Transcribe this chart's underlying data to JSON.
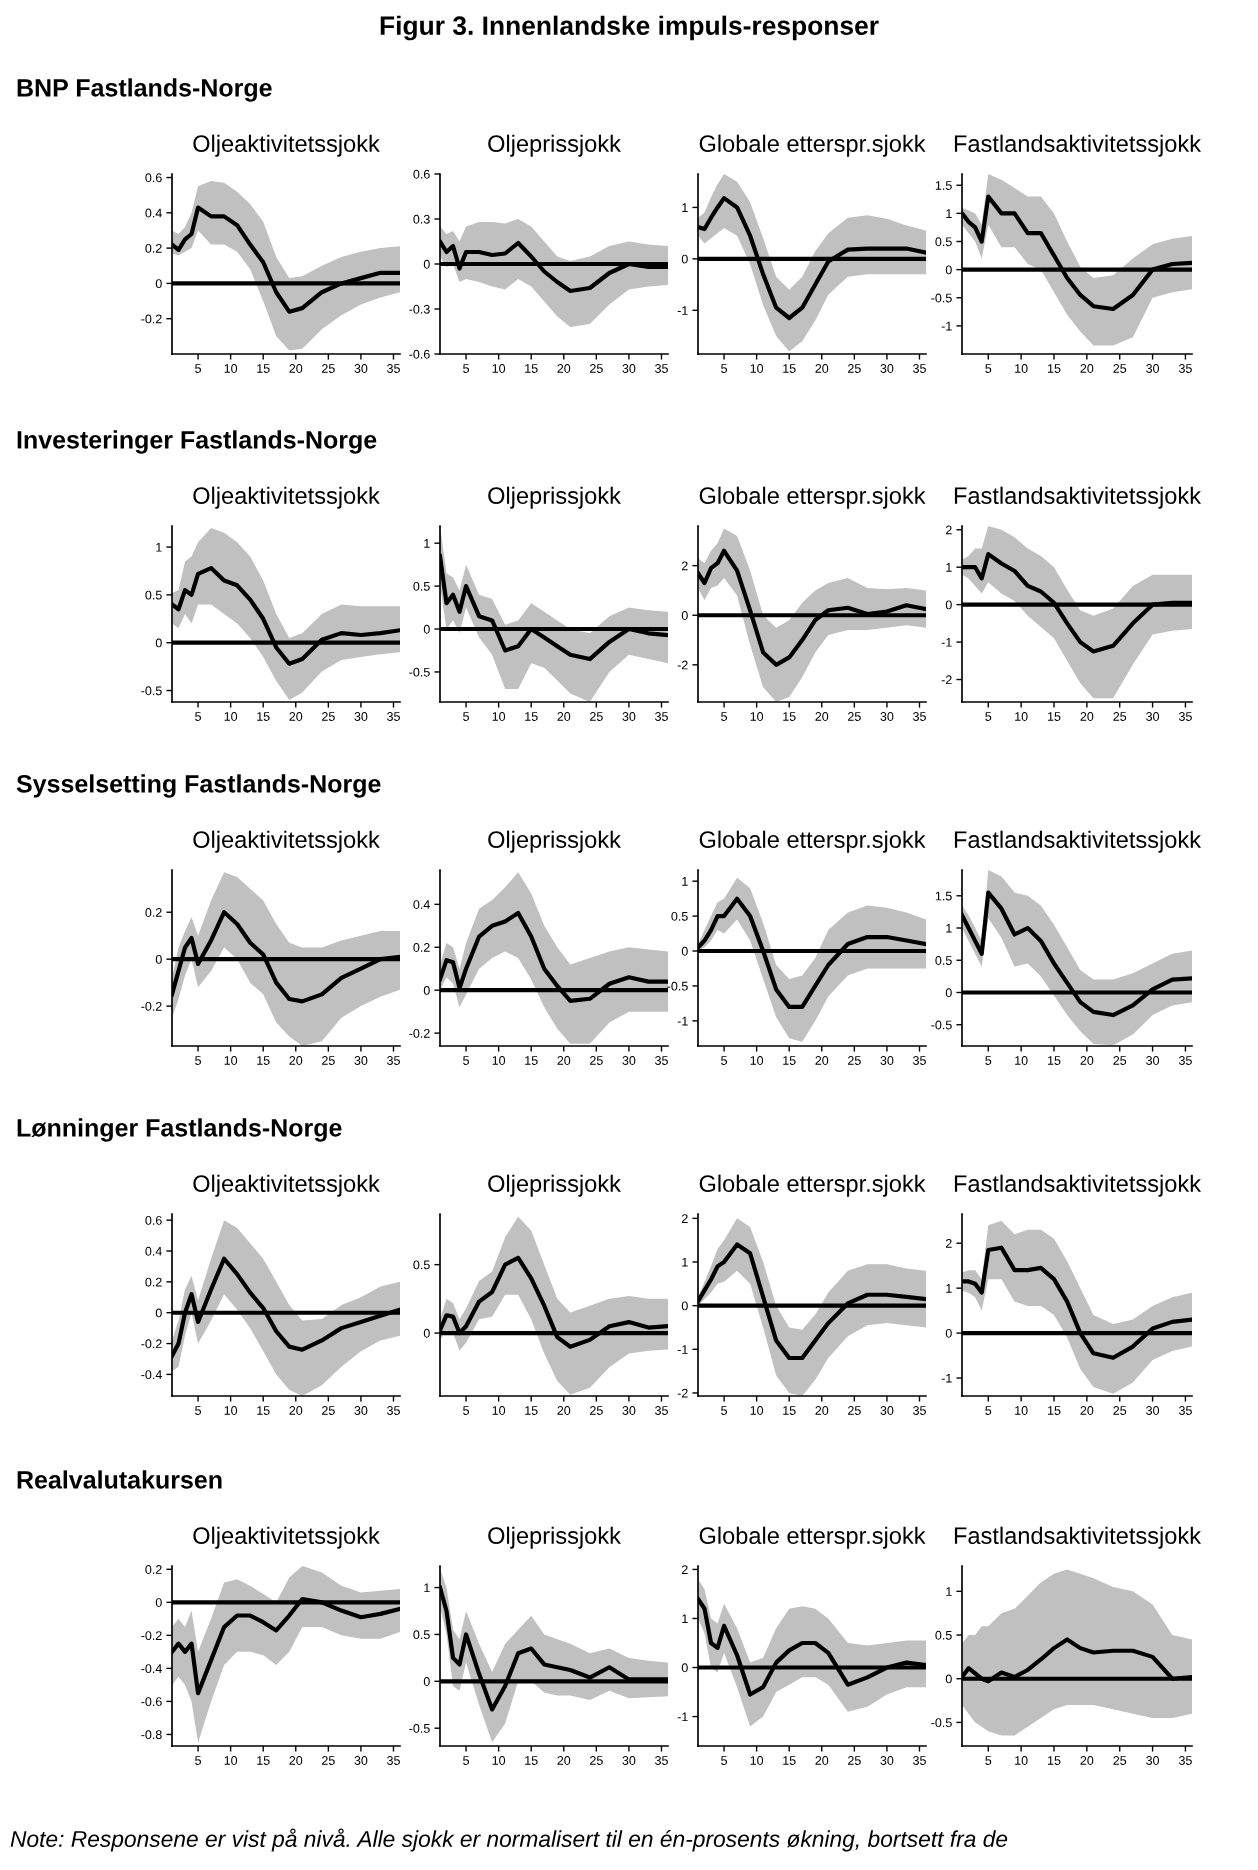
{
  "chart_data": [
    {
      "type": "other",
      "title": "Figur 3. Innenlandske impuls-responser",
      "annotations": [
        "Note: Responsene er vist på nivå. Alle sjokk er normalisert til en én-prosents økning, bortsett fra de"
      ]
    },
    {
      "type": "line",
      "subtitle": "BNP Fastlands-Norge",
      "title": "Oljeaktivitetssjokk",
      "xlim": [
        1,
        36
      ],
      "xticks": [
        5,
        10,
        15,
        20,
        25,
        30,
        35
      ],
      "ylim": [
        -0.4,
        0.62
      ],
      "yticks": [
        -0.2,
        0,
        0.2,
        0.4,
        0.6
      ],
      "ref_lines": [
        {
          "axis": "y",
          "value": 0,
          "color": "#000000"
        }
      ],
      "series": [
        {
          "color": "#000000",
          "x": [
            1,
            2,
            3,
            4,
            5,
            7,
            9,
            11,
            13,
            15,
            17,
            19,
            21,
            24,
            27,
            30,
            33,
            36
          ],
          "values": [
            0.22,
            0.19,
            0.25,
            0.28,
            0.43,
            0.38,
            0.38,
            0.33,
            0.22,
            0.12,
            -0.05,
            -0.16,
            -0.14,
            -0.05,
            0.0,
            0.03,
            0.06,
            0.06
          ],
          "upper": [
            0.3,
            0.28,
            0.32,
            0.4,
            0.55,
            0.58,
            0.57,
            0.52,
            0.45,
            0.35,
            0.15,
            0.03,
            0.04,
            0.1,
            0.15,
            0.18,
            0.2,
            0.21
          ],
          "lower": [
            0.17,
            0.16,
            0.18,
            0.2,
            0.3,
            0.22,
            0.22,
            0.18,
            0.08,
            -0.1,
            -0.3,
            -0.38,
            -0.37,
            -0.26,
            -0.18,
            -0.12,
            -0.08,
            -0.05
          ]
        }
      ]
    },
    {
      "type": "line",
      "title": "Oljeprissjokk",
      "xlim": [
        1,
        36
      ],
      "xticks": [
        5,
        10,
        15,
        20,
        25,
        30,
        35
      ],
      "ylim": [
        -0.6,
        0.6
      ],
      "yticks": [
        -0.6,
        -0.3,
        0,
        0.3,
        0.6
      ],
      "ref_lines": [
        {
          "axis": "y",
          "value": 0,
          "color": "#000000"
        }
      ],
      "series": [
        {
          "color": "#000000",
          "x": [
            1,
            2,
            3,
            4,
            5,
            7,
            9,
            11,
            13,
            15,
            17,
            19,
            21,
            24,
            27,
            30,
            33,
            36
          ],
          "values": [
            0.15,
            0.08,
            0.12,
            -0.03,
            0.08,
            0.08,
            0.06,
            0.07,
            0.14,
            0.05,
            -0.05,
            -0.12,
            -0.18,
            -0.16,
            -0.06,
            0.0,
            -0.02,
            -0.02
          ],
          "upper": [
            0.25,
            0.2,
            0.22,
            0.15,
            0.25,
            0.28,
            0.28,
            0.27,
            0.3,
            0.25,
            0.15,
            0.05,
            0.02,
            0.05,
            0.12,
            0.15,
            0.13,
            0.12
          ],
          "lower": [
            0.05,
            -0.02,
            0.0,
            -0.12,
            -0.1,
            -0.12,
            -0.15,
            -0.17,
            -0.1,
            -0.15,
            -0.25,
            -0.35,
            -0.42,
            -0.4,
            -0.27,
            -0.17,
            -0.15,
            -0.14
          ]
        }
      ]
    },
    {
      "type": "line",
      "title": "Globale etterspr.sjokk",
      "xlim": [
        1,
        36
      ],
      "xticks": [
        5,
        10,
        15,
        20,
        25,
        30,
        35
      ],
      "ylim": [
        -1.85,
        1.65
      ],
      "yticks": [
        -1,
        0,
        1
      ],
      "ref_lines": [
        {
          "axis": "y",
          "value": 0,
          "color": "#000000"
        }
      ],
      "series": [
        {
          "color": "#000000",
          "x": [
            1,
            2,
            3,
            4,
            5,
            7,
            9,
            11,
            13,
            15,
            17,
            19,
            21,
            24,
            27,
            30,
            33,
            36
          ],
          "values": [
            0.62,
            0.58,
            0.8,
            1.0,
            1.18,
            1.0,
            0.45,
            -0.3,
            -0.95,
            -1.15,
            -0.95,
            -0.5,
            -0.05,
            0.18,
            0.2,
            0.2,
            0.2,
            0.12
          ],
          "upper": [
            0.8,
            0.9,
            1.2,
            1.45,
            1.65,
            1.5,
            1.1,
            0.4,
            -0.35,
            -0.6,
            -0.35,
            0.15,
            0.5,
            0.8,
            0.85,
            0.78,
            0.65,
            0.55
          ],
          "lower": [
            0.45,
            0.3,
            0.4,
            0.5,
            0.6,
            0.45,
            -0.1,
            -0.9,
            -1.5,
            -1.8,
            -1.6,
            -1.2,
            -0.7,
            -0.35,
            -0.3,
            -0.3,
            -0.3,
            -0.3
          ]
        }
      ]
    },
    {
      "type": "line",
      "title": "Fastlandsaktivitetssjokk",
      "xlim": [
        1,
        36
      ],
      "xticks": [
        5,
        10,
        15,
        20,
        25,
        30,
        35
      ],
      "ylim": [
        -1.5,
        1.7
      ],
      "yticks": [
        -1,
        -0.5,
        0,
        0.5,
        1,
        1.5
      ],
      "ref_lines": [
        {
          "axis": "y",
          "value": 0,
          "color": "#000000"
        }
      ],
      "series": [
        {
          "color": "#000000",
          "x": [
            1,
            2,
            3,
            4,
            5,
            7,
            9,
            11,
            13,
            15,
            17,
            19,
            21,
            24,
            27,
            30,
            33,
            36
          ],
          "values": [
            1.0,
            0.85,
            0.75,
            0.5,
            1.3,
            1.0,
            1.0,
            0.65,
            0.65,
            0.25,
            -0.15,
            -0.45,
            -0.65,
            -0.7,
            -0.45,
            0.0,
            0.1,
            0.12
          ],
          "upper": [
            1.1,
            1.05,
            1.0,
            0.8,
            1.7,
            1.6,
            1.45,
            1.3,
            1.3,
            1.0,
            0.5,
            0.05,
            -0.15,
            -0.1,
            0.2,
            0.45,
            0.55,
            0.6
          ],
          "lower": [
            0.8,
            0.65,
            0.5,
            0.2,
            0.8,
            0.4,
            0.4,
            0.1,
            0.0,
            -0.4,
            -0.8,
            -1.1,
            -1.35,
            -1.35,
            -1.2,
            -0.5,
            -0.4,
            -0.35
          ]
        }
      ]
    },
    {
      "type": "line",
      "subtitle": "Investeringer Fastlands-Norge",
      "title": "Oljeaktivitetssjokk",
      "xlim": [
        1,
        36
      ],
      "xticks": [
        5,
        10,
        15,
        20,
        25,
        30,
        35
      ],
      "ylim": [
        -0.62,
        1.22
      ],
      "yticks": [
        -0.5,
        0,
        0.5,
        1
      ],
      "ref_lines": [
        {
          "axis": "y",
          "value": 0,
          "color": "#000000"
        }
      ],
      "series": [
        {
          "color": "#000000",
          "x": [
            1,
            2,
            3,
            4,
            5,
            7,
            9,
            11,
            13,
            15,
            17,
            19,
            21,
            24,
            27,
            30,
            33,
            36
          ],
          "values": [
            0.4,
            0.35,
            0.55,
            0.5,
            0.72,
            0.78,
            0.65,
            0.6,
            0.45,
            0.25,
            -0.05,
            -0.22,
            -0.17,
            0.03,
            0.1,
            0.08,
            0.1,
            0.13
          ],
          "upper": [
            0.52,
            0.55,
            0.85,
            0.9,
            1.05,
            1.2,
            1.15,
            1.05,
            0.9,
            0.65,
            0.3,
            0.05,
            0.1,
            0.3,
            0.4,
            0.38,
            0.38,
            0.38
          ],
          "lower": [
            0.2,
            0.15,
            0.3,
            0.2,
            0.4,
            0.4,
            0.3,
            0.2,
            0.05,
            -0.15,
            -0.4,
            -0.6,
            -0.52,
            -0.3,
            -0.18,
            -0.15,
            -0.12,
            -0.1
          ]
        }
      ]
    },
    {
      "type": "line",
      "title": "Oljeprissjokk",
      "xlim": [
        1,
        36
      ],
      "xticks": [
        5,
        10,
        15,
        20,
        25,
        30,
        35
      ],
      "ylim": [
        -0.85,
        1.2
      ],
      "yticks": [
        -0.5,
        0,
        0.5,
        1
      ],
      "ref_lines": [
        {
          "axis": "y",
          "value": 0,
          "color": "#000000"
        }
      ],
      "series": [
        {
          "color": "#000000",
          "x": [
            1,
            2,
            3,
            4,
            5,
            7,
            9,
            11,
            13,
            15,
            17,
            19,
            21,
            24,
            27,
            30,
            33,
            36
          ],
          "values": [
            0.85,
            0.3,
            0.4,
            0.2,
            0.5,
            0.15,
            0.1,
            -0.25,
            -0.2,
            0.0,
            -0.1,
            -0.2,
            -0.3,
            -0.35,
            -0.15,
            0.0,
            -0.05,
            -0.07
          ],
          "upper": [
            1.2,
            0.65,
            0.6,
            0.45,
            0.75,
            0.4,
            0.35,
            0.05,
            0.1,
            0.3,
            0.2,
            0.1,
            0.0,
            -0.05,
            0.15,
            0.25,
            0.22,
            0.2
          ],
          "lower": [
            0.5,
            0.0,
            0.1,
            -0.05,
            0.25,
            -0.1,
            -0.3,
            -0.7,
            -0.7,
            -0.4,
            -0.45,
            -0.6,
            -0.75,
            -0.85,
            -0.5,
            -0.3,
            -0.35,
            -0.4
          ]
        }
      ]
    },
    {
      "type": "line",
      "title": "Globale etterspr.sjokk",
      "xlim": [
        1,
        36
      ],
      "xticks": [
        5,
        10,
        15,
        20,
        25,
        30,
        35
      ],
      "ylim": [
        -3.5,
        3.6
      ],
      "yticks": [
        -2,
        0,
        2
      ],
      "ref_lines": [
        {
          "axis": "y",
          "value": 0,
          "color": "#000000"
        }
      ],
      "series": [
        {
          "color": "#000000",
          "x": [
            1,
            2,
            3,
            4,
            5,
            7,
            9,
            11,
            13,
            15,
            17,
            19,
            21,
            24,
            27,
            30,
            33,
            36
          ],
          "values": [
            1.7,
            1.3,
            1.9,
            2.1,
            2.6,
            1.8,
            0.2,
            -1.5,
            -2.0,
            -1.7,
            -1.0,
            -0.2,
            0.2,
            0.3,
            0.05,
            0.15,
            0.4,
            0.25
          ],
          "upper": [
            2.3,
            2.1,
            2.6,
            2.9,
            3.5,
            3.2,
            1.8,
            0.0,
            -0.5,
            -0.2,
            0.5,
            1.0,
            1.3,
            1.5,
            1.1,
            1.05,
            1.1,
            1.0
          ],
          "lower": [
            1.1,
            0.6,
            1.1,
            1.2,
            1.5,
            0.8,
            -1.2,
            -2.9,
            -3.5,
            -3.3,
            -2.5,
            -1.5,
            -0.8,
            -0.6,
            -0.6,
            -0.5,
            -0.4,
            -0.5
          ]
        }
      ]
    },
    {
      "type": "line",
      "title": "Fastlandsaktivitetssjokk",
      "xlim": [
        1,
        36
      ],
      "xticks": [
        5,
        10,
        15,
        20,
        25,
        30,
        35
      ],
      "ylim": [
        -2.6,
        2.1
      ],
      "yticks": [
        -2,
        -1,
        0,
        1,
        2
      ],
      "ref_lines": [
        {
          "axis": "y",
          "value": 0,
          "color": "#000000"
        }
      ],
      "series": [
        {
          "color": "#000000",
          "x": [
            1,
            2,
            3,
            4,
            5,
            7,
            9,
            11,
            13,
            15,
            17,
            19,
            21,
            24,
            27,
            30,
            33,
            36
          ],
          "values": [
            1.0,
            1.0,
            1.0,
            0.7,
            1.35,
            1.1,
            0.9,
            0.5,
            0.35,
            0.05,
            -0.5,
            -1.0,
            -1.25,
            -1.1,
            -0.5,
            0.0,
            0.05,
            0.05
          ],
          "upper": [
            1.2,
            1.3,
            1.5,
            1.5,
            2.1,
            2.0,
            1.8,
            1.5,
            1.3,
            1.0,
            0.4,
            -0.15,
            -0.3,
            -0.1,
            0.5,
            0.8,
            0.8,
            0.8
          ],
          "lower": [
            0.8,
            0.7,
            0.5,
            0.3,
            0.6,
            0.3,
            0.1,
            -0.3,
            -0.6,
            -0.9,
            -1.5,
            -2.1,
            -2.5,
            -2.5,
            -1.6,
            -0.8,
            -0.7,
            -0.65
          ]
        }
      ]
    },
    {
      "type": "line",
      "subtitle": "Sysselsetting Fastlands-Norge",
      "title": "Oljeaktivitetssjokk",
      "xlim": [
        1,
        36
      ],
      "xticks": [
        5,
        10,
        15,
        20,
        25,
        30,
        35
      ],
      "ylim": [
        -0.37,
        0.38
      ],
      "yticks": [
        -0.2,
        0,
        0.2
      ],
      "ref_lines": [
        {
          "axis": "y",
          "value": 0,
          "color": "#000000"
        }
      ],
      "series": [
        {
          "color": "#000000",
          "x": [
            1,
            2,
            3,
            4,
            5,
            7,
            9,
            11,
            13,
            15,
            17,
            19,
            21,
            24,
            27,
            30,
            33,
            36
          ],
          "values": [
            -0.15,
            -0.05,
            0.05,
            0.09,
            -0.02,
            0.08,
            0.2,
            0.15,
            0.07,
            0.02,
            -0.1,
            -0.17,
            -0.18,
            -0.15,
            -0.08,
            -0.04,
            0.0,
            0.01
          ],
          "upper": [
            -0.08,
            0.05,
            0.12,
            0.18,
            0.1,
            0.25,
            0.37,
            0.35,
            0.3,
            0.25,
            0.15,
            0.07,
            0.05,
            0.05,
            0.08,
            0.1,
            0.12,
            0.12
          ],
          "lower": [
            -0.25,
            -0.17,
            -0.07,
            0.0,
            -0.12,
            -0.05,
            0.05,
            0.0,
            -0.1,
            -0.15,
            -0.27,
            -0.33,
            -0.37,
            -0.35,
            -0.25,
            -0.2,
            -0.16,
            -0.13
          ]
        }
      ]
    },
    {
      "type": "line",
      "title": "Oljeprissjokk",
      "xlim": [
        1,
        36
      ],
      "xticks": [
        5,
        10,
        15,
        20,
        25,
        30,
        35
      ],
      "ylim": [
        -0.26,
        0.56
      ],
      "yticks": [
        -0.2,
        0,
        0.2,
        0.4
      ],
      "ref_lines": [
        {
          "axis": "y",
          "value": 0,
          "color": "#000000"
        }
      ],
      "series": [
        {
          "color": "#000000",
          "x": [
            1,
            2,
            3,
            4,
            5,
            7,
            9,
            11,
            13,
            15,
            17,
            19,
            21,
            24,
            27,
            30,
            33,
            36
          ],
          "values": [
            0.05,
            0.14,
            0.13,
            0.01,
            0.1,
            0.25,
            0.3,
            0.32,
            0.36,
            0.25,
            0.1,
            0.02,
            -0.05,
            -0.04,
            0.03,
            0.06,
            0.04,
            0.04
          ],
          "upper": [
            0.12,
            0.22,
            0.2,
            0.1,
            0.22,
            0.38,
            0.42,
            0.48,
            0.55,
            0.45,
            0.3,
            0.2,
            0.12,
            0.15,
            0.18,
            0.2,
            0.19,
            0.18
          ],
          "lower": [
            0.0,
            0.06,
            0.03,
            -0.08,
            -0.02,
            0.1,
            0.15,
            0.18,
            0.15,
            0.05,
            -0.08,
            -0.18,
            -0.25,
            -0.25,
            -0.15,
            -0.1,
            -0.1,
            -0.1
          ]
        }
      ]
    },
    {
      "type": "line",
      "title": "Globale etterspr.sjokk",
      "xlim": [
        1,
        36
      ],
      "xticks": [
        5,
        10,
        15,
        20,
        25,
        30,
        35
      ],
      "ylim": [
        -1.36,
        1.16
      ],
      "yticks": [
        -1,
        -0.5,
        0,
        0.5,
        1
      ],
      "ref_lines": [
        {
          "axis": "y",
          "value": 0,
          "color": "#000000"
        }
      ],
      "series": [
        {
          "color": "#000000",
          "x": [
            1,
            2,
            3,
            4,
            5,
            7,
            9,
            11,
            13,
            15,
            17,
            19,
            21,
            24,
            27,
            30,
            33,
            36
          ],
          "values": [
            0.05,
            0.15,
            0.3,
            0.5,
            0.5,
            0.75,
            0.5,
            0.0,
            -0.55,
            -0.8,
            -0.8,
            -0.5,
            -0.2,
            0.1,
            0.2,
            0.2,
            0.15,
            0.1
          ],
          "upper": [
            0.1,
            0.3,
            0.5,
            0.7,
            0.75,
            1.05,
            0.9,
            0.4,
            -0.2,
            -0.4,
            -0.35,
            -0.1,
            0.3,
            0.55,
            0.65,
            0.62,
            0.55,
            0.45
          ],
          "lower": [
            0.0,
            0.05,
            0.15,
            0.3,
            0.25,
            0.45,
            0.15,
            -0.4,
            -0.95,
            -1.25,
            -1.3,
            -1.0,
            -0.65,
            -0.35,
            -0.25,
            -0.25,
            -0.25,
            -0.25
          ]
        }
      ]
    },
    {
      "type": "line",
      "title": "Fastlandsaktivitetssjokk",
      "xlim": [
        1,
        36
      ],
      "xticks": [
        5,
        10,
        15,
        20,
        25,
        30,
        35
      ],
      "ylim": [
        -0.83,
        1.9
      ],
      "yticks": [
        -0.5,
        0,
        0.5,
        1,
        1.5
      ],
      "ref_lines": [
        {
          "axis": "y",
          "value": 0,
          "color": "#000000"
        }
      ],
      "series": [
        {
          "color": "#000000",
          "x": [
            1,
            2,
            3,
            4,
            5,
            7,
            9,
            11,
            13,
            15,
            17,
            19,
            21,
            24,
            27,
            30,
            33,
            36
          ],
          "values": [
            1.2,
            1.0,
            0.8,
            0.6,
            1.55,
            1.3,
            0.9,
            1.0,
            0.8,
            0.45,
            0.15,
            -0.15,
            -0.3,
            -0.35,
            -0.2,
            0.05,
            0.2,
            0.22
          ],
          "upper": [
            1.35,
            1.2,
            1.0,
            0.8,
            1.9,
            1.8,
            1.55,
            1.5,
            1.35,
            1.05,
            0.7,
            0.35,
            0.2,
            0.2,
            0.3,
            0.45,
            0.6,
            0.65
          ],
          "lower": [
            1.0,
            0.8,
            0.6,
            0.4,
            1.15,
            0.85,
            0.4,
            0.45,
            0.25,
            -0.05,
            -0.35,
            -0.6,
            -0.8,
            -0.82,
            -0.65,
            -0.35,
            -0.2,
            -0.15
          ]
        }
      ]
    },
    {
      "type": "line",
      "subtitle": "Lønninger Fastlands-Norge",
      "title": "Oljeaktivitetssjokk",
      "xlim": [
        1,
        36
      ],
      "xticks": [
        5,
        10,
        15,
        20,
        25,
        30,
        35
      ],
      "ylim": [
        -0.54,
        0.64
      ],
      "yticks": [
        -0.4,
        -0.2,
        0,
        0.2,
        0.4,
        0.6
      ],
      "ref_lines": [
        {
          "axis": "y",
          "value": 0,
          "color": "#000000"
        }
      ],
      "series": [
        {
          "color": "#000000",
          "x": [
            1,
            2,
            3,
            4,
            5,
            7,
            9,
            11,
            13,
            15,
            17,
            19,
            21,
            24,
            27,
            30,
            33,
            36
          ],
          "values": [
            -0.28,
            -0.2,
            0.0,
            0.12,
            -0.06,
            0.15,
            0.35,
            0.25,
            0.13,
            0.03,
            -0.12,
            -0.22,
            -0.24,
            -0.18,
            -0.1,
            -0.06,
            -0.02,
            0.02
          ],
          "upper": [
            -0.18,
            -0.05,
            0.15,
            0.24,
            0.08,
            0.35,
            0.6,
            0.55,
            0.45,
            0.35,
            0.2,
            0.05,
            -0.05,
            -0.04,
            0.05,
            0.1,
            0.17,
            0.2
          ],
          "lower": [
            -0.38,
            -0.35,
            -0.15,
            0.0,
            -0.2,
            -0.05,
            0.12,
            0.02,
            -0.1,
            -0.25,
            -0.4,
            -0.5,
            -0.54,
            -0.47,
            -0.35,
            -0.25,
            -0.18,
            -0.15
          ]
        }
      ]
    },
    {
      "type": "line",
      "title": "Oljeprissjokk",
      "xlim": [
        1,
        36
      ],
      "xticks": [
        5,
        10,
        15,
        20,
        25,
        30,
        35
      ],
      "ylim": [
        -0.46,
        0.87
      ],
      "yticks": [
        0,
        0.5
      ],
      "ref_lines": [
        {
          "axis": "y",
          "value": 0,
          "color": "#000000"
        }
      ],
      "series": [
        {
          "color": "#000000",
          "x": [
            1,
            2,
            3,
            4,
            5,
            7,
            9,
            11,
            13,
            15,
            17,
            19,
            21,
            24,
            27,
            30,
            33,
            36
          ],
          "values": [
            0.02,
            0.13,
            0.12,
            0.0,
            0.05,
            0.23,
            0.3,
            0.5,
            0.55,
            0.4,
            0.2,
            -0.03,
            -0.1,
            -0.05,
            0.05,
            0.08,
            0.04,
            0.05
          ],
          "upper": [
            0.1,
            0.25,
            0.22,
            0.1,
            0.18,
            0.38,
            0.45,
            0.7,
            0.85,
            0.75,
            0.5,
            0.25,
            0.15,
            0.2,
            0.25,
            0.27,
            0.25,
            0.25
          ],
          "lower": [
            -0.05,
            0.02,
            0.0,
            -0.13,
            -0.07,
            0.1,
            0.12,
            0.28,
            0.28,
            0.1,
            -0.15,
            -0.35,
            -0.45,
            -0.4,
            -0.25,
            -0.15,
            -0.13,
            -0.12
          ]
        }
      ]
    },
    {
      "type": "line",
      "title": "Globale etterspr.sjokk",
      "xlim": [
        1,
        36
      ],
      "xticks": [
        5,
        10,
        15,
        20,
        25,
        30,
        35
      ],
      "ylim": [
        -2.07,
        2.1
      ],
      "yticks": [
        -2,
        -1,
        0,
        1,
        2
      ],
      "ref_lines": [
        {
          "axis": "y",
          "value": 0,
          "color": "#000000"
        }
      ],
      "series": [
        {
          "color": "#000000",
          "x": [
            1,
            2,
            3,
            4,
            5,
            7,
            9,
            11,
            13,
            15,
            17,
            19,
            21,
            24,
            27,
            30,
            33,
            36
          ],
          "values": [
            0.1,
            0.35,
            0.6,
            0.9,
            1.0,
            1.4,
            1.2,
            0.2,
            -0.8,
            -1.2,
            -1.2,
            -0.8,
            -0.4,
            0.05,
            0.25,
            0.25,
            0.2,
            0.15
          ],
          "upper": [
            0.2,
            0.55,
            0.9,
            1.3,
            1.5,
            2.0,
            1.8,
            1.0,
            0.0,
            -0.5,
            -0.55,
            -0.2,
            0.3,
            0.8,
            0.95,
            0.95,
            0.85,
            0.8
          ],
          "lower": [
            0.0,
            0.15,
            0.3,
            0.5,
            0.55,
            0.8,
            0.5,
            -0.5,
            -1.6,
            -2.0,
            -2.07,
            -1.7,
            -1.2,
            -0.7,
            -0.45,
            -0.4,
            -0.45,
            -0.5
          ]
        }
      ]
    },
    {
      "type": "line",
      "title": "Fastlandsaktivitetssjokk",
      "xlim": [
        1,
        36
      ],
      "xticks": [
        5,
        10,
        15,
        20,
        25,
        30,
        35
      ],
      "ylim": [
        -1.4,
        2.65
      ],
      "yticks": [
        -1,
        0,
        1,
        2
      ],
      "ref_lines": [
        {
          "axis": "y",
          "value": 0,
          "color": "#000000"
        }
      ],
      "series": [
        {
          "color": "#000000",
          "x": [
            1,
            2,
            3,
            4,
            5,
            7,
            9,
            11,
            13,
            15,
            17,
            19,
            21,
            24,
            27,
            30,
            33,
            36
          ],
          "values": [
            1.15,
            1.15,
            1.1,
            0.9,
            1.85,
            1.9,
            1.4,
            1.4,
            1.45,
            1.2,
            0.7,
            0.0,
            -0.45,
            -0.55,
            -0.3,
            0.1,
            0.25,
            0.3
          ],
          "upper": [
            1.35,
            1.4,
            1.4,
            1.2,
            2.4,
            2.5,
            2.2,
            2.3,
            2.3,
            2.1,
            1.6,
            1.0,
            0.4,
            0.2,
            0.3,
            0.6,
            0.8,
            0.9
          ],
          "lower": [
            0.95,
            0.9,
            0.8,
            0.5,
            1.2,
            1.2,
            0.7,
            0.6,
            0.6,
            0.4,
            -0.1,
            -0.8,
            -1.2,
            -1.35,
            -1.1,
            -0.6,
            -0.4,
            -0.3
          ]
        }
      ]
    },
    {
      "type": "line",
      "subtitle": "Realvalutakursen",
      "title": "Oljeaktivitetssjokk",
      "xlim": [
        1,
        36
      ],
      "xticks": [
        5,
        10,
        15,
        20,
        25,
        30,
        35
      ],
      "ylim": [
        -0.87,
        0.22
      ],
      "yticks": [
        -0.8,
        -0.6,
        -0.4,
        -0.2,
        0,
        0.2
      ],
      "ref_lines": [
        {
          "axis": "y",
          "value": 0,
          "color": "#000000"
        }
      ],
      "series": [
        {
          "color": "#000000",
          "x": [
            1,
            2,
            3,
            4,
            5,
            7,
            9,
            11,
            13,
            15,
            17,
            19,
            21,
            24,
            27,
            30,
            33,
            36
          ],
          "values": [
            -0.3,
            -0.25,
            -0.3,
            -0.25,
            -0.55,
            -0.35,
            -0.15,
            -0.08,
            -0.08,
            -0.12,
            -0.17,
            -0.08,
            0.02,
            0.0,
            -0.05,
            -0.09,
            -0.07,
            -0.04
          ],
          "upper": [
            -0.15,
            -0.1,
            -0.15,
            -0.05,
            -0.3,
            -0.1,
            0.12,
            0.14,
            0.1,
            0.05,
            0.0,
            0.15,
            0.22,
            0.18,
            0.1,
            0.06,
            0.07,
            0.08
          ],
          "lower": [
            -0.5,
            -0.45,
            -0.5,
            -0.6,
            -0.85,
            -0.6,
            -0.38,
            -0.3,
            -0.3,
            -0.32,
            -0.38,
            -0.3,
            -0.15,
            -0.15,
            -0.2,
            -0.22,
            -0.22,
            -0.18
          ]
        }
      ]
    },
    {
      "type": "line",
      "title": "Oljeprissjokk",
      "xlim": [
        1,
        36
      ],
      "xticks": [
        5,
        10,
        15,
        20,
        25,
        30,
        35
      ],
      "ylim": [
        -0.69,
        1.23
      ],
      "yticks": [
        -0.5,
        0,
        0.5,
        1
      ],
      "ref_lines": [
        {
          "axis": "y",
          "value": 0,
          "color": "#000000"
        }
      ],
      "series": [
        {
          "color": "#000000",
          "x": [
            1,
            2,
            3,
            4,
            5,
            7,
            9,
            11,
            13,
            15,
            17,
            19,
            21,
            24,
            27,
            30,
            33,
            36
          ],
          "values": [
            1.0,
            0.75,
            0.25,
            0.18,
            0.5,
            0.08,
            -0.3,
            -0.05,
            0.3,
            0.35,
            0.18,
            0.15,
            0.12,
            0.04,
            0.15,
            0.02,
            0.02,
            0.02
          ],
          "upper": [
            1.2,
            1.0,
            0.55,
            0.45,
            0.75,
            0.4,
            0.1,
            0.4,
            0.55,
            0.7,
            0.5,
            0.45,
            0.4,
            0.3,
            0.35,
            0.25,
            0.22,
            0.2
          ],
          "lower": [
            0.8,
            0.5,
            -0.05,
            -0.1,
            0.2,
            -0.25,
            -0.65,
            -0.45,
            0.0,
            0.0,
            -0.12,
            -0.15,
            -0.15,
            -0.2,
            -0.1,
            -0.18,
            -0.17,
            -0.16
          ]
        }
      ]
    },
    {
      "type": "line",
      "title": "Globale etterspr.sjokk",
      "xlim": [
        1,
        36
      ],
      "xticks": [
        5,
        10,
        15,
        20,
        25,
        30,
        35
      ],
      "ylim": [
        -1.6,
        2.07
      ],
      "yticks": [
        -1,
        0,
        1,
        2
      ],
      "ref_lines": [
        {
          "axis": "y",
          "value": 0,
          "color": "#000000"
        }
      ],
      "series": [
        {
          "color": "#000000",
          "x": [
            1,
            2,
            3,
            4,
            5,
            7,
            9,
            11,
            13,
            15,
            17,
            19,
            21,
            24,
            27,
            30,
            33,
            36
          ],
          "values": [
            1.4,
            1.2,
            0.5,
            0.4,
            0.85,
            0.25,
            -0.55,
            -0.4,
            0.1,
            0.35,
            0.5,
            0.5,
            0.3,
            -0.35,
            -0.2,
            0.0,
            0.1,
            0.05
          ],
          "upper": [
            1.8,
            1.6,
            1.0,
            0.9,
            1.3,
            0.8,
            0.1,
            0.2,
            0.8,
            1.2,
            1.25,
            1.2,
            1.0,
            0.5,
            0.45,
            0.5,
            0.55,
            0.55
          ],
          "lower": [
            1.0,
            0.7,
            0.0,
            -0.1,
            0.3,
            -0.4,
            -1.2,
            -1.0,
            -0.5,
            -0.35,
            -0.2,
            -0.2,
            -0.35,
            -0.9,
            -0.8,
            -0.55,
            -0.4,
            -0.4
          ]
        }
      ]
    },
    {
      "type": "line",
      "title": "Fastlandsaktivitetssjokk",
      "xlim": [
        1,
        36
      ],
      "xticks": [
        5,
        10,
        15,
        20,
        25,
        30,
        35
      ],
      "ylim": [
        -0.77,
        1.29
      ],
      "yticks": [
        -0.5,
        0,
        0.5,
        1
      ],
      "ref_lines": [
        {
          "axis": "y",
          "value": 0,
          "color": "#000000"
        }
      ],
      "series": [
        {
          "color": "#000000",
          "x": [
            1,
            2,
            3,
            4,
            5,
            7,
            9,
            11,
            13,
            15,
            17,
            19,
            21,
            24,
            27,
            30,
            33,
            36
          ],
          "values": [
            0.02,
            0.12,
            0.06,
            0.0,
            -0.03,
            0.07,
            0.02,
            0.1,
            0.22,
            0.35,
            0.45,
            0.35,
            0.3,
            0.32,
            0.32,
            0.25,
            0.0,
            0.02
          ],
          "upper": [
            0.4,
            0.5,
            0.5,
            0.6,
            0.6,
            0.75,
            0.8,
            0.95,
            1.1,
            1.2,
            1.25,
            1.2,
            1.15,
            1.05,
            1.0,
            0.85,
            0.5,
            0.45
          ],
          "lower": [
            -0.3,
            -0.4,
            -0.5,
            -0.55,
            -0.6,
            -0.65,
            -0.65,
            -0.55,
            -0.45,
            -0.35,
            -0.3,
            -0.3,
            -0.3,
            -0.35,
            -0.4,
            -0.45,
            -0.45,
            -0.4
          ]
        }
      ]
    }
  ]
}
